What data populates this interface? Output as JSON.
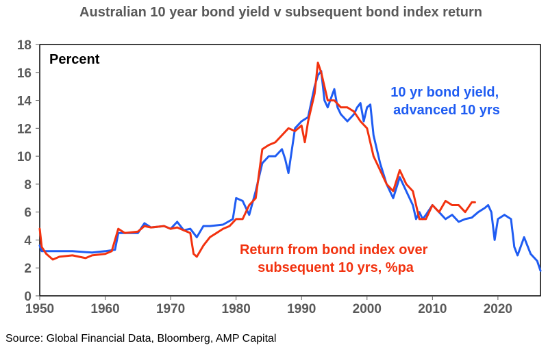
{
  "chart_data": {
    "type": "line",
    "title": "Australian 10 year bond yield v subsequent bond index return",
    "ylabel": "Percent",
    "source": "Source: Global Financial Data, Bloomberg, AMP Capital",
    "xlim": [
      1950,
      2026.5
    ],
    "ylim": [
      0,
      18
    ],
    "xticks": [
      1950,
      1960,
      1970,
      1980,
      1990,
      2000,
      2010,
      2020
    ],
    "yticks": [
      0,
      2,
      4,
      6,
      8,
      10,
      12,
      14,
      16,
      18
    ],
    "grid": false,
    "legend": "inline annotations",
    "series": [
      {
        "name": "10 yr bond yield, advanced 10 yrs",
        "color": "#1F5CF2",
        "x": [
          1950,
          1950.3,
          1951,
          1952,
          1955,
          1958,
          1960,
          1961.5,
          1962,
          1963,
          1965,
          1966,
          1967,
          1969,
          1970,
          1971,
          1972,
          1973,
          1974,
          1975,
          1976,
          1978,
          1979.5,
          1980,
          1981,
          1982,
          1983,
          1984,
          1985,
          1986,
          1987,
          1987.5,
          1988,
          1989,
          1990,
          1991,
          1992,
          1992.5,
          1993,
          1993.5,
          1994,
          1995,
          1995.5,
          1996,
          1997,
          1998,
          1998.5,
          1999,
          1999.5,
          2000,
          2000.5,
          2001,
          2002,
          2003,
          2004,
          2005,
          2006,
          2007,
          2007.5,
          2008,
          2008.5,
          2009,
          2010,
          2011,
          2012,
          2013,
          2014,
          2015,
          2016,
          2017,
          2018,
          2018.5,
          2019,
          2019.5,
          2020,
          2021,
          2022,
          2022.5,
          2023,
          2024,
          2025,
          2026,
          2026.5
        ],
        "y": [
          3.6,
          3.2,
          3.2,
          3.2,
          3.2,
          3.1,
          3.2,
          3.3,
          4.5,
          4.5,
          4.5,
          5.2,
          4.9,
          5.0,
          4.8,
          5.3,
          4.7,
          4.8,
          4.2,
          5.0,
          5.0,
          5.1,
          5.5,
          7.0,
          6.8,
          5.8,
          7.5,
          9.5,
          10.0,
          10.0,
          10.5,
          9.8,
          8.8,
          12.0,
          12.5,
          12.8,
          15.0,
          15.8,
          16.1,
          14.0,
          13.5,
          14.8,
          13.5,
          13.0,
          12.5,
          13.0,
          13.5,
          13.8,
          12.5,
          13.5,
          13.7,
          11.5,
          9.5,
          8.0,
          7.0,
          8.5,
          7.5,
          6.5,
          5.5,
          6.0,
          5.5,
          5.8,
          6.5,
          6.0,
          5.5,
          5.8,
          5.3,
          5.5,
          5.6,
          6.0,
          6.3,
          6.5,
          6.0,
          4.0,
          5.5,
          5.8,
          5.5,
          3.5,
          2.9,
          4.2,
          3.0,
          2.5,
          1.8
        ]
      },
      {
        "name": "Return from bond index over subsequent 10 yrs, %pa",
        "color": "#F2320F",
        "x": [
          1950,
          1950.3,
          1951,
          1952,
          1953,
          1955,
          1957,
          1958,
          1960,
          1961,
          1962,
          1963,
          1965,
          1966,
          1967,
          1969,
          1970,
          1971,
          1972,
          1973,
          1973.5,
          1974,
          1975,
          1976,
          1977,
          1978,
          1979,
          1980,
          1981,
          1982,
          1983,
          1984,
          1985,
          1986,
          1987,
          1988,
          1989,
          1990,
          1990.5,
          1991,
          1992,
          1992.5,
          1993,
          1994,
          1995,
          1996,
          1997,
          1998,
          1999,
          2000,
          2001,
          2002,
          2003,
          2004,
          2005,
          2006,
          2007,
          2008,
          2009,
          2010,
          2011,
          2012,
          2013,
          2014,
          2015,
          2016,
          2016.5
        ],
        "y": [
          4.8,
          3.5,
          3.0,
          2.6,
          2.8,
          2.9,
          2.7,
          2.9,
          3.0,
          3.2,
          4.8,
          4.5,
          4.6,
          5.0,
          4.9,
          5.0,
          4.8,
          4.9,
          4.7,
          4.5,
          3.0,
          2.8,
          3.6,
          4.2,
          4.5,
          4.8,
          5.0,
          5.5,
          5.5,
          6.5,
          7.0,
          10.5,
          10.8,
          11.0,
          11.5,
          12.0,
          11.8,
          12.2,
          11.0,
          12.5,
          14.5,
          16.7,
          16.0,
          14.0,
          14.0,
          13.5,
          13.5,
          13.2,
          12.5,
          12.0,
          10.0,
          9.0,
          8.0,
          7.5,
          9.0,
          8.0,
          7.5,
          5.5,
          5.5,
          6.5,
          6.0,
          6.8,
          6.5,
          6.5,
          6.0,
          6.7,
          6.7
        ]
      }
    ],
    "annotations": [
      {
        "lines": [
          "10 yr bond yield,",
          "advanced 10 yrs"
        ],
        "color": "#1F5CF2"
      },
      {
        "lines": [
          "Return from bond index over",
          "subsequent 10 yrs, %pa"
        ],
        "color": "#F2320F"
      }
    ],
    "axis_color": "#595959"
  }
}
